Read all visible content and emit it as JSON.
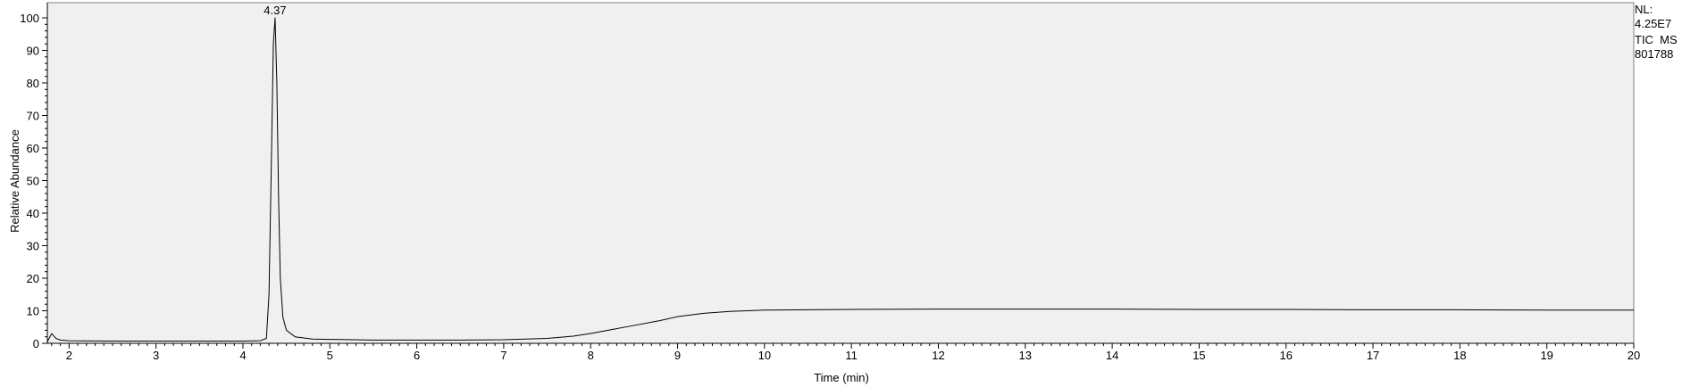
{
  "chart_data": {
    "type": "line",
    "xlabel": "Time (min)",
    "ylabel": "Relative Abundance",
    "xlim": [
      1.75,
      20
    ],
    "ylim": [
      0,
      100
    ],
    "x_ticks": [
      2,
      3,
      4,
      5,
      6,
      7,
      8,
      9,
      10,
      11,
      12,
      13,
      14,
      15,
      16,
      17,
      18,
      19,
      20
    ],
    "y_ticks": [
      0,
      10,
      20,
      30,
      40,
      50,
      60,
      70,
      80,
      90,
      100
    ],
    "peak_labels": [
      {
        "x": 4.37,
        "y": 100,
        "label": "4.37"
      }
    ],
    "series": [
      {
        "x": [
          1.75,
          1.8,
          1.85,
          1.9,
          2.0,
          2.5,
          3.0,
          3.5,
          4.0,
          4.2,
          4.27,
          4.3,
          4.33,
          4.35,
          4.37,
          4.39,
          4.41,
          4.43,
          4.46,
          4.5,
          4.6,
          4.8,
          5.0,
          5.5,
          6.0,
          6.5,
          7.0,
          7.5,
          7.8,
          8.0,
          8.2,
          8.5,
          8.8,
          9.0,
          9.3,
          9.6,
          10.0,
          11.0,
          12.0,
          13.0,
          14.0,
          15.0,
          16.0,
          17.0,
          18.0,
          19.0,
          20.0
        ],
        "y": [
          0.5,
          3.0,
          1.5,
          1.0,
          0.8,
          0.7,
          0.7,
          0.7,
          0.7,
          0.8,
          1.5,
          15,
          60,
          92,
          100,
          80,
          45,
          20,
          8,
          4,
          2,
          1.3,
          1.2,
          1.0,
          1.0,
          1.0,
          1.1,
          1.5,
          2.2,
          3.0,
          4.0,
          5.5,
          7.0,
          8.2,
          9.2,
          9.8,
          10.2,
          10.4,
          10.5,
          10.5,
          10.5,
          10.4,
          10.4,
          10.3,
          10.3,
          10.2,
          10.2
        ]
      }
    ],
    "grid": false,
    "background": "#f0f0f0",
    "line_color": "#000000"
  },
  "info": {
    "nl_label": "NL:",
    "nl_value": "4.25E7",
    "scan_type": "TIC  MS",
    "file_name": "801788"
  }
}
